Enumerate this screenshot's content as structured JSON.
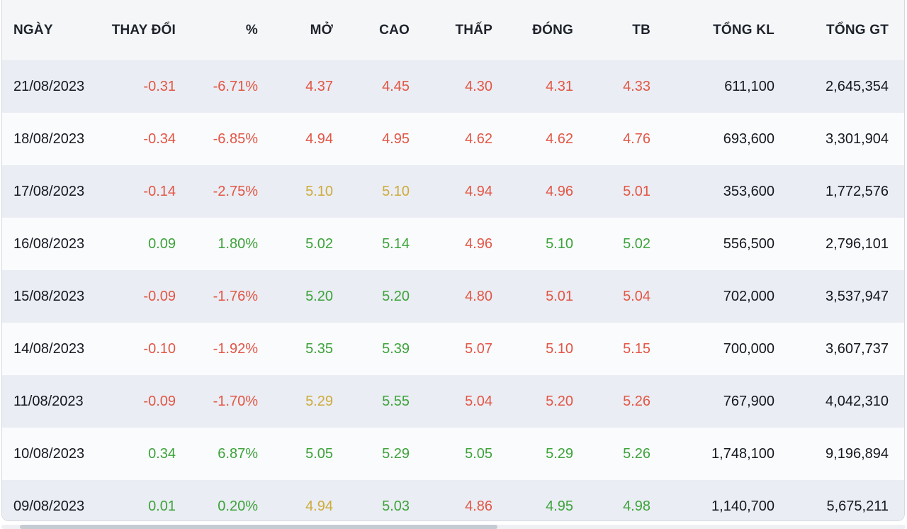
{
  "colors": {
    "up": "#3da33a",
    "down": "#e25645",
    "reference": "#ceab3b",
    "neutral": "#15181e",
    "header_background": "#f5f6f8",
    "row_alternate": "#eaedf3"
  },
  "table": {
    "headers": [
      {
        "key": "date",
        "label": "NGÀY"
      },
      {
        "key": "change",
        "label": "THAY ĐỔI"
      },
      {
        "key": "percent",
        "label": "%"
      },
      {
        "key": "open",
        "label": "MỞ"
      },
      {
        "key": "high",
        "label": "CAO"
      },
      {
        "key": "low",
        "label": "THẤP"
      },
      {
        "key": "close",
        "label": "ĐÓNG"
      },
      {
        "key": "avg",
        "label": "TB"
      },
      {
        "key": "total_kl",
        "label": "TỔNG KL"
      },
      {
        "key": "total_gt",
        "label": "TỔNG GT"
      }
    ],
    "rows": [
      {
        "date": "21/08/2023",
        "cells": [
          {
            "text": "-0.31",
            "color": "down"
          },
          {
            "text": "-6.71%",
            "color": "down"
          },
          {
            "text": "4.37",
            "color": "down"
          },
          {
            "text": "4.45",
            "color": "down"
          },
          {
            "text": "4.30",
            "color": "down"
          },
          {
            "text": "4.31",
            "color": "down"
          },
          {
            "text": "4.33",
            "color": "down"
          },
          {
            "text": "611,100",
            "color": "neutral"
          },
          {
            "text": "2,645,354",
            "color": "neutral"
          }
        ]
      },
      {
        "date": "18/08/2023",
        "cells": [
          {
            "text": "-0.34",
            "color": "down"
          },
          {
            "text": "-6.85%",
            "color": "down"
          },
          {
            "text": "4.94",
            "color": "down"
          },
          {
            "text": "4.95",
            "color": "down"
          },
          {
            "text": "4.62",
            "color": "down"
          },
          {
            "text": "4.62",
            "color": "down"
          },
          {
            "text": "4.76",
            "color": "down"
          },
          {
            "text": "693,600",
            "color": "neutral"
          },
          {
            "text": "3,301,904",
            "color": "neutral"
          }
        ]
      },
      {
        "date": "17/08/2023",
        "cells": [
          {
            "text": "-0.14",
            "color": "down"
          },
          {
            "text": "-2.75%",
            "color": "down"
          },
          {
            "text": "5.10",
            "color": "reference"
          },
          {
            "text": "5.10",
            "color": "reference"
          },
          {
            "text": "4.94",
            "color": "down"
          },
          {
            "text": "4.96",
            "color": "down"
          },
          {
            "text": "5.01",
            "color": "down"
          },
          {
            "text": "353,600",
            "color": "neutral"
          },
          {
            "text": "1,772,576",
            "color": "neutral"
          }
        ]
      },
      {
        "date": "16/08/2023",
        "cells": [
          {
            "text": "0.09",
            "color": "up"
          },
          {
            "text": "1.80%",
            "color": "up"
          },
          {
            "text": "5.02",
            "color": "up"
          },
          {
            "text": "5.14",
            "color": "up"
          },
          {
            "text": "4.96",
            "color": "down"
          },
          {
            "text": "5.10",
            "color": "up"
          },
          {
            "text": "5.02",
            "color": "up"
          },
          {
            "text": "556,500",
            "color": "neutral"
          },
          {
            "text": "2,796,101",
            "color": "neutral"
          }
        ]
      },
      {
        "date": "15/08/2023",
        "cells": [
          {
            "text": "-0.09",
            "color": "down"
          },
          {
            "text": "-1.76%",
            "color": "down"
          },
          {
            "text": "5.20",
            "color": "up"
          },
          {
            "text": "5.20",
            "color": "up"
          },
          {
            "text": "4.80",
            "color": "down"
          },
          {
            "text": "5.01",
            "color": "down"
          },
          {
            "text": "5.04",
            "color": "down"
          },
          {
            "text": "702,000",
            "color": "neutral"
          },
          {
            "text": "3,537,947",
            "color": "neutral"
          }
        ]
      },
      {
        "date": "14/08/2023",
        "cells": [
          {
            "text": "-0.10",
            "color": "down"
          },
          {
            "text": "-1.92%",
            "color": "down"
          },
          {
            "text": "5.35",
            "color": "up"
          },
          {
            "text": "5.39",
            "color": "up"
          },
          {
            "text": "5.07",
            "color": "down"
          },
          {
            "text": "5.10",
            "color": "down"
          },
          {
            "text": "5.15",
            "color": "down"
          },
          {
            "text": "700,000",
            "color": "neutral"
          },
          {
            "text": "3,607,737",
            "color": "neutral"
          }
        ]
      },
      {
        "date": "11/08/2023",
        "cells": [
          {
            "text": "-0.09",
            "color": "down"
          },
          {
            "text": "-1.70%",
            "color": "down"
          },
          {
            "text": "5.29",
            "color": "reference"
          },
          {
            "text": "5.55",
            "color": "up"
          },
          {
            "text": "5.04",
            "color": "down"
          },
          {
            "text": "5.20",
            "color": "down"
          },
          {
            "text": "5.26",
            "color": "down"
          },
          {
            "text": "767,900",
            "color": "neutral"
          },
          {
            "text": "4,042,310",
            "color": "neutral"
          }
        ]
      },
      {
        "date": "10/08/2023",
        "cells": [
          {
            "text": "0.34",
            "color": "up"
          },
          {
            "text": "6.87%",
            "color": "up"
          },
          {
            "text": "5.05",
            "color": "up"
          },
          {
            "text": "5.29",
            "color": "up"
          },
          {
            "text": "5.05",
            "color": "up"
          },
          {
            "text": "5.29",
            "color": "up"
          },
          {
            "text": "5.26",
            "color": "up"
          },
          {
            "text": "1,748,100",
            "color": "neutral"
          },
          {
            "text": "9,196,894",
            "color": "neutral"
          }
        ]
      },
      {
        "date": "09/08/2023",
        "cells": [
          {
            "text": "0.01",
            "color": "up"
          },
          {
            "text": "0.20%",
            "color": "up"
          },
          {
            "text": "4.94",
            "color": "reference"
          },
          {
            "text": "5.03",
            "color": "up"
          },
          {
            "text": "4.86",
            "color": "down"
          },
          {
            "text": "4.95",
            "color": "up"
          },
          {
            "text": "4.98",
            "color": "up"
          },
          {
            "text": "1,140,700",
            "color": "neutral"
          },
          {
            "text": "5,675,211",
            "color": "neutral"
          }
        ]
      }
    ]
  },
  "scrollbar": {
    "orientation": "horizontal"
  }
}
